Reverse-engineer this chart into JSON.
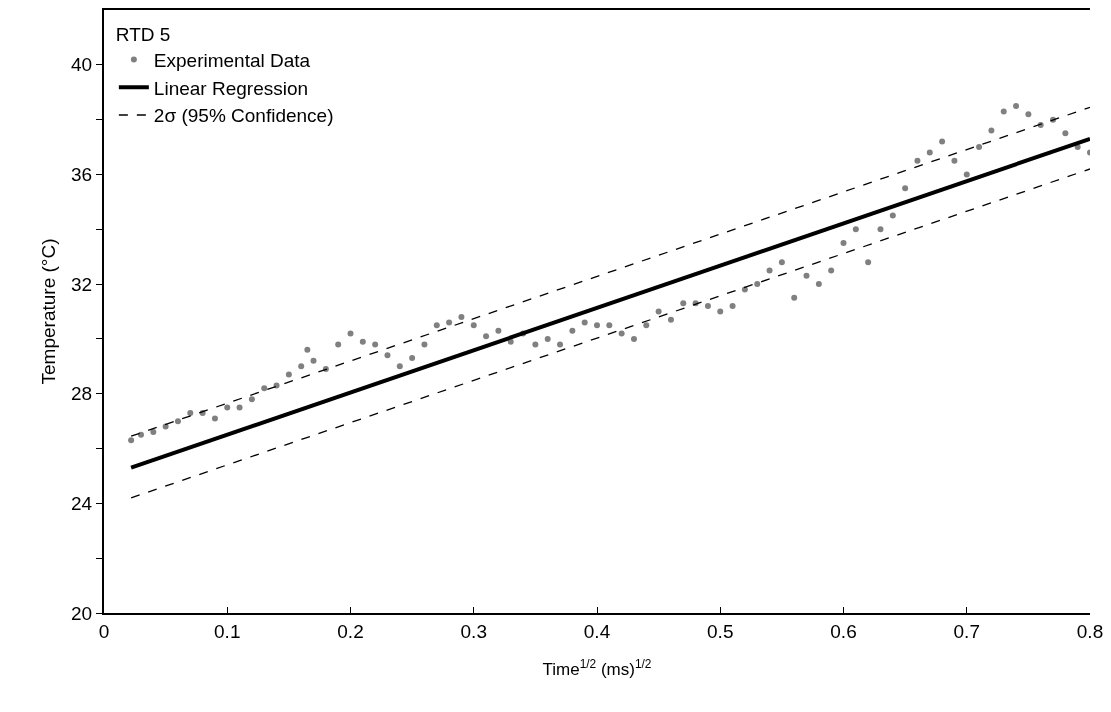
{
  "chart_data": {
    "type": "scatter",
    "xlabel": "Time$^{1/2}$ (ms)$^{1/2}$",
    "ylabel": "Temperature (°C)",
    "legend_title": "RTD 5",
    "legend": "top left",
    "grid": false,
    "xlim": [
      0,
      0.8
    ],
    "xticks": [
      0,
      0.1,
      0.2,
      0.3,
      0.4,
      0.5,
      0.6,
      0.7,
      0.8
    ],
    "ylim": [
      20,
      42
    ],
    "yticks": [
      20,
      {
        "value": 22,
        "label": null
      },
      24,
      {
        "value": 26,
        "label": null
      },
      28,
      {
        "value": 30,
        "label": null
      },
      32,
      {
        "value": 34,
        "label": null
      },
      36,
      {
        "value": 38,
        "label": null
      },
      40
    ],
    "series": [
      {
        "name": "Experimental Data",
        "marker": "circle",
        "color": "#808080",
        "x": [
          0.022,
          0.03,
          0.04,
          0.05,
          0.06,
          0.07,
          0.08,
          0.09,
          0.1,
          0.11,
          0.12,
          0.13,
          0.14,
          0.15,
          0.16,
          0.165,
          0.17,
          0.18,
          0.19,
          0.2,
          0.21,
          0.22,
          0.23,
          0.24,
          0.25,
          0.26,
          0.27,
          0.28,
          0.29,
          0.3,
          0.31,
          0.32,
          0.33,
          0.34,
          0.35,
          0.36,
          0.37,
          0.38,
          0.39,
          0.4,
          0.41,
          0.42,
          0.43,
          0.44,
          0.45,
          0.46,
          0.47,
          0.48,
          0.49,
          0.5,
          0.51,
          0.52,
          0.53,
          0.54,
          0.55,
          0.56,
          0.57,
          0.58,
          0.59,
          0.6,
          0.61,
          0.62,
          0.63,
          0.64,
          0.65,
          0.66,
          0.67,
          0.68,
          0.69,
          0.7,
          0.71,
          0.72,
          0.73,
          0.74,
          0.75,
          0.76,
          0.77,
          0.78,
          0.79,
          0.8
        ],
        "values": [
          26.3,
          26.5,
          26.6,
          26.8,
          27.0,
          27.3,
          27.3,
          27.1,
          27.5,
          27.5,
          27.8,
          28.2,
          28.3,
          28.7,
          29.0,
          29.6,
          29.2,
          28.9,
          29.8,
          30.2,
          29.9,
          29.8,
          29.4,
          29.0,
          29.3,
          29.8,
          30.5,
          30.6,
          30.8,
          30.5,
          30.1,
          30.3,
          29.9,
          30.2,
          29.8,
          30.0,
          29.8,
          30.3,
          30.6,
          30.5,
          30.5,
          30.2,
          30.0,
          30.5,
          31.0,
          30.7,
          31.3,
          31.3,
          31.2,
          31.0,
          31.2,
          31.8,
          32.0,
          32.5,
          32.8,
          31.5,
          32.3,
          32.0,
          32.5,
          33.5,
          34.0,
          32.8,
          34.0,
          34.5,
          35.5,
          36.5,
          36.8,
          37.2,
          36.5,
          36.0,
          37.0,
          37.6,
          38.3,
          38.5,
          38.2,
          37.8,
          38.0,
          37.5,
          37.0,
          36.8
        ]
      },
      {
        "name": "Linear Regression",
        "type": "line",
        "line_style": "solid",
        "marker": "none",
        "color": "#000000",
        "x": [
          0.022,
          0.8
        ],
        "values": [
          25.3,
          37.3
        ]
      },
      {
        "name": "2σ (95% Confidence)",
        "type": "line",
        "line_style": "dashed",
        "marker": "none",
        "color": "#000000",
        "x": [
          0.022,
          0.8
        ],
        "values": [
          26.45,
          38.45
        ]
      },
      {
        "type": "line",
        "line_style": "dashed",
        "marker": "none",
        "color": "#000000",
        "x": [
          0.022,
          0.8
        ],
        "values": [
          24.2,
          36.2
        ]
      }
    ]
  }
}
